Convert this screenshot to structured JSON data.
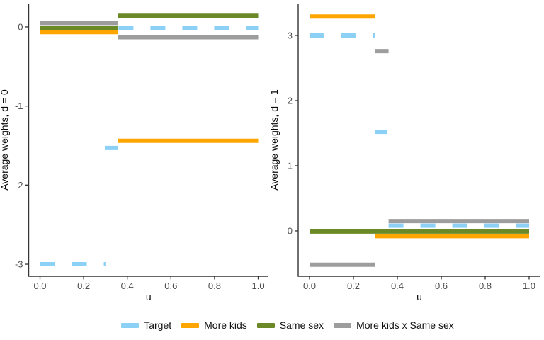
{
  "figure": {
    "background": "#ffffff",
    "axis_line_color": "#333333",
    "tick_label_color": "#4d4d4d",
    "axis_title_color": "#0a0a0a"
  },
  "legend": {
    "items": [
      {
        "id": "target",
        "label": "Target",
        "color": "#8DD0F5",
        "dashed": true
      },
      {
        "id": "more-kids",
        "label": "More kids",
        "color": "#FFA500",
        "dashed": false
      },
      {
        "id": "same-sex",
        "label": "Same sex",
        "color": "#6B8A27",
        "dashed": false
      },
      {
        "id": "more-kids-x-same-sex",
        "label": "More kids x Same sex",
        "color": "#9D9D9D",
        "dashed": false
      }
    ]
  },
  "chart_data": [
    {
      "type": "line",
      "panel": "d0",
      "ylabel": "Average weights, d = 0",
      "xlabel": "u",
      "xlim": [
        -0.052,
        1.047
      ],
      "ylim": [
        -3.152,
        0.295
      ],
      "xtick_values": [
        0.0,
        0.2,
        0.4,
        0.6,
        0.8,
        1.0
      ],
      "xtick_labels": [
        "0.0",
        "0.2",
        "0.4",
        "0.6",
        "0.8",
        "1.0"
      ],
      "ytick_values": [
        0,
        -1,
        -2,
        -3
      ],
      "ytick_labels": [
        "0",
        "-1",
        "-2",
        "-3"
      ],
      "grid": false,
      "series": [
        {
          "name": "Target",
          "color": "#8DD0F5",
          "dashed": true,
          "segments": [
            [
              0.0,
              0.3,
              -3.0
            ],
            [
              0.297,
              0.357,
              -1.53
            ],
            [
              0.36,
              1.0,
              -0.015
            ]
          ]
        },
        {
          "name": "More kids",
          "color": "#FFA500",
          "dashed": false,
          "segments": [
            [
              0.0,
              0.358,
              -0.065
            ],
            [
              0.358,
              1.0,
              -1.44
            ]
          ]
        },
        {
          "name": "Same sex",
          "color": "#6B8A27",
          "dashed": false,
          "segments": [
            [
              0.0,
              0.358,
              -0.01
            ],
            [
              0.358,
              1.0,
              0.14
            ]
          ]
        },
        {
          "name": "More kids x Same sex",
          "color": "#9D9D9D",
          "dashed": false,
          "segments": [
            [
              0.0,
              0.358,
              0.05
            ],
            [
              0.358,
              1.0,
              -0.13
            ]
          ]
        }
      ]
    },
    {
      "type": "line",
      "panel": "d1",
      "ylabel": "Average weights, d = 1",
      "xlabel": "u",
      "xlim": [
        -0.0516,
        1.0516
      ],
      "ylim": [
        -0.696,
        3.489
      ],
      "xtick_values": [
        0.0,
        0.2,
        0.4,
        0.6,
        0.8,
        1.0
      ],
      "xtick_labels": [
        "0.0",
        "0.2",
        "0.4",
        "0.6",
        "0.8",
        "1.0"
      ],
      "ytick_values": [
        3,
        2,
        1,
        0
      ],
      "ytick_labels": [
        "3",
        "2",
        "1",
        "0"
      ],
      "grid": false,
      "series": [
        {
          "name": "Target",
          "color": "#8DD0F5",
          "dashed": true,
          "segments": [
            [
              0.0,
              0.3,
              3.0
            ],
            [
              0.297,
              0.355,
              1.52
            ],
            [
              0.36,
              1.0,
              0.08
            ]
          ]
        },
        {
          "name": "More kids",
          "color": "#FFA500",
          "dashed": false,
          "segments": [
            [
              0.0,
              0.3,
              3.29
            ],
            [
              0.3,
              1.0,
              -0.08
            ]
          ]
        },
        {
          "name": "Same sex",
          "color": "#6B8A27",
          "dashed": false,
          "segments": [
            [
              0.0,
              1.0,
              -0.01
            ]
          ]
        },
        {
          "name": "More kids x Same sex",
          "color": "#9D9D9D",
          "dashed": false,
          "segments": [
            [
              0.0,
              0.3,
              -0.52
            ],
            [
              0.3,
              0.36,
              2.76
            ],
            [
              0.36,
              1.0,
              0.15
            ]
          ]
        }
      ]
    }
  ]
}
